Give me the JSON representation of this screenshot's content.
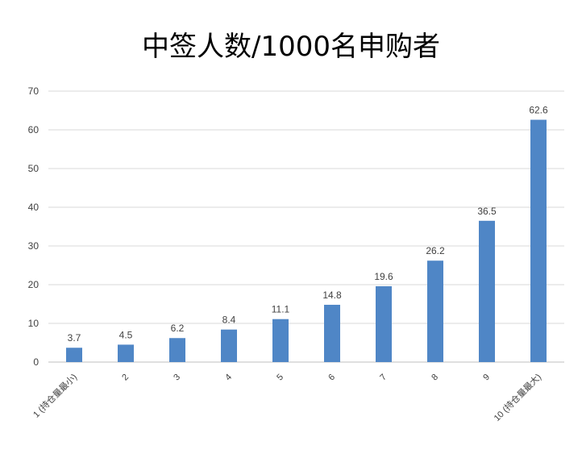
{
  "chart_data": {
    "type": "bar",
    "title": "中签人数/1000名申购者",
    "categories": [
      "1 (持仓量最小)",
      "2",
      "3",
      "4",
      "5",
      "6",
      "7",
      "8",
      "9",
      "10 (持仓量最大)"
    ],
    "values": [
      3.7,
      4.5,
      6.2,
      8.4,
      11.1,
      14.8,
      19.6,
      26.2,
      36.5,
      62.6
    ],
    "data_labels": [
      "3.7",
      "4.5",
      "6.2",
      "8.4",
      "11.1",
      "14.8",
      "19.6",
      "26.2",
      "36.5",
      "62.6"
    ],
    "y_ticks": [
      "0",
      "10",
      "20",
      "30",
      "40",
      "50",
      "60",
      "70"
    ],
    "xlabel": "",
    "ylabel": "",
    "ylim": [
      0,
      70
    ],
    "grid": true,
    "legend": "none",
    "colors": {
      "bar": "#4f86c6",
      "grid": "#d9d9d9",
      "axis": "#bfbfbf",
      "text": "#404040"
    }
  }
}
